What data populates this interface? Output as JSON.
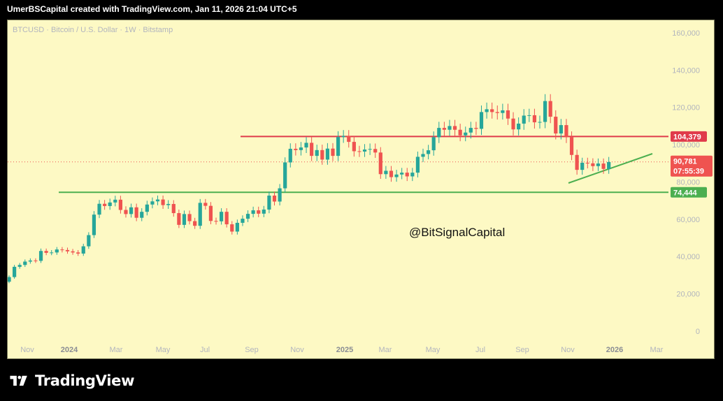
{
  "header": {
    "credit": "UmerBSCapital created with TradingView.com, Jan 11, 2026 21:04 UTC+5"
  },
  "footer": {
    "brand": "TradingView"
  },
  "colors": {
    "background": "#fdf9c4",
    "up": "#26a69a",
    "down": "#ef5350",
    "resistance": "#e03b4b",
    "support": "#4caf50",
    "axis_text": "#b2b5be"
  },
  "chart_data": {
    "type": "candlestick",
    "title": "BTCUSD · Bitcoin / U.S. Dollar · 1W · Bitstamp",
    "watermark": "@BitSignalCapital",
    "ylim": [
      0,
      160000
    ],
    "y_ticks": [
      0,
      20000,
      40000,
      60000,
      80000,
      100000,
      120000,
      140000,
      160000
    ],
    "y_tick_labels": [
      "0",
      "20,000",
      "40,000",
      "60,000",
      "80,000",
      "100,000",
      "120,000",
      "140,000",
      "160,000"
    ],
    "x_labels": [
      "Nov",
      "2024",
      "Mar",
      "May",
      "Jul",
      "Sep",
      "Nov",
      "2025",
      "Mar",
      "May",
      "Jul",
      "Sep",
      "Nov",
      "2026",
      "Mar"
    ],
    "bold_x_labels": [
      "2024",
      "2025",
      "2026"
    ],
    "start_close": 26500,
    "closes": [
      29000,
      34500,
      35500,
      37300,
      37900,
      37700,
      43000,
      42000,
      42200,
      43800,
      43500,
      42800,
      42200,
      41600,
      45500,
      51500,
      62500,
      68300,
      67100,
      69000,
      70500,
      65000,
      62800,
      66400,
      60800,
      64000,
      67900,
      69600,
      70600,
      67600,
      68200,
      63300,
      57000,
      62800,
      59000,
      56500,
      68800,
      67200,
      59100,
      58900,
      64000,
      57300,
      53400,
      58100,
      60300,
      62900,
      64800,
      63000,
      65200,
      72700,
      69500,
      76600,
      90500,
      97800,
      97100,
      98500,
      101000,
      94000,
      97100,
      92000,
      97900,
      94000,
      104100,
      104700,
      101500,
      96500,
      96300,
      97400,
      97700,
      95800,
      84200,
      86000,
      82600,
      84000,
      85000,
      83000,
      85000,
      93500,
      95000,
      97000,
      104000,
      109000,
      108000,
      110000,
      108000,
      105000,
      106500,
      109000,
      108500,
      117500,
      119000,
      117500,
      117000,
      118400,
      114000,
      108200,
      111300,
      115600,
      115800,
      112000,
      112200,
      123400,
      115000,
      106000,
      110500,
      104000,
      94500,
      86500,
      90300,
      90000,
      88500,
      89900,
      87000,
      90700
    ],
    "support": {
      "value": 74444,
      "label": "74,444"
    },
    "resistance": {
      "value": 104379,
      "label": "104,379"
    },
    "current": {
      "value": 90781,
      "label": "90,781",
      "countdown": "07:55:39"
    },
    "trendline": {
      "start": {
        "date": "2025-11-20",
        "price": 80000
      },
      "end": {
        "date": "2026-02-05",
        "price": 94000
      }
    }
  }
}
